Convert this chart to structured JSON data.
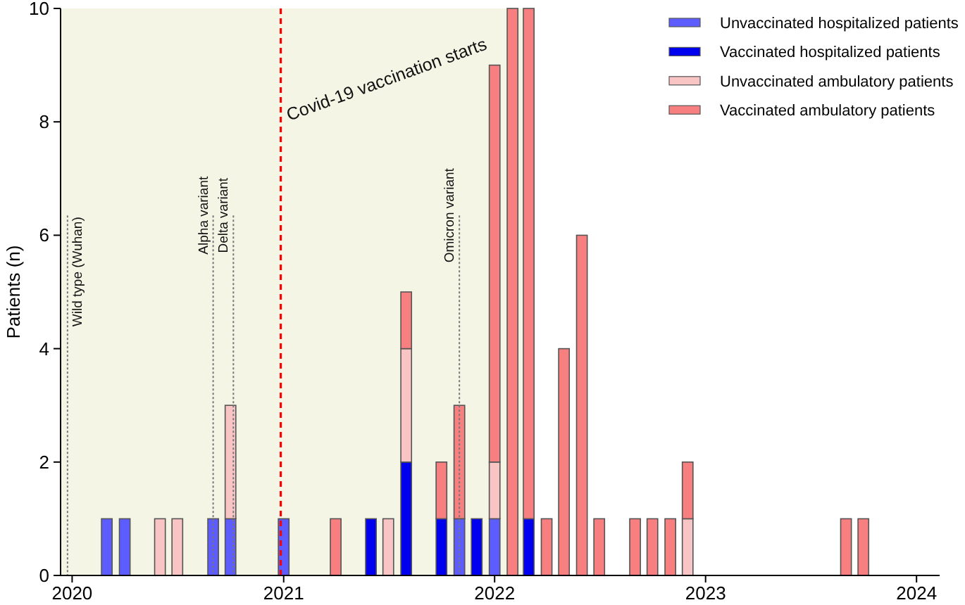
{
  "chart_data": {
    "type": "bar",
    "stacked": true,
    "ylabel": "Patients (n)",
    "x": [
      "2020-03",
      "2020-04",
      "2020-06",
      "2020-07",
      "2020-09",
      "2020-10",
      "2021-01",
      "2021-04",
      "2021-06",
      "2021-07",
      "2021-08",
      "2021-10",
      "2021-11",
      "2021-12",
      "2022-01",
      "2022-02",
      "2022-03",
      "2022-04",
      "2022-05",
      "2022-06",
      "2022-07",
      "2022-09",
      "2022-10",
      "2022-11",
      "2022-12",
      "2023-09",
      "2023-10"
    ],
    "series": [
      {
        "name": "Unvaccinated hospitalized patients",
        "color": "#5c5cff",
        "values": [
          1,
          1,
          null,
          null,
          1,
          1,
          1,
          null,
          null,
          null,
          null,
          null,
          1,
          null,
          1,
          null,
          null,
          null,
          null,
          null,
          null,
          null,
          null,
          null,
          null,
          null,
          null
        ]
      },
      {
        "name": "Vaccinated hospitalized patients",
        "color": "#0000ee",
        "values": [
          null,
          null,
          null,
          null,
          null,
          null,
          null,
          null,
          1,
          null,
          2,
          1,
          null,
          1,
          null,
          null,
          1,
          null,
          null,
          null,
          null,
          null,
          null,
          null,
          null,
          null,
          null
        ]
      },
      {
        "name": "Unvaccinated ambulatory patients",
        "color": "#f9c4c4",
        "values": [
          null,
          null,
          1,
          1,
          null,
          2,
          null,
          null,
          null,
          1,
          2,
          null,
          null,
          null,
          1,
          null,
          null,
          null,
          null,
          null,
          null,
          null,
          null,
          null,
          1,
          null,
          null
        ]
      },
      {
        "name": "Vaccinated ambulatory patients",
        "color": "#f77f7f",
        "values": [
          null,
          null,
          null,
          null,
          null,
          null,
          null,
          1,
          null,
          null,
          1,
          1,
          2,
          null,
          7,
          10,
          9,
          1,
          4,
          6,
          1,
          1,
          1,
          1,
          1,
          1,
          1
        ]
      }
    ],
    "xlim": [
      "2019-12-12",
      "2024-02-10"
    ],
    "xticks": [
      "2020",
      "2021",
      "2022",
      "2023",
      "2024"
    ],
    "ylim": [
      0,
      10
    ],
    "yticks": [
      0,
      2,
      4,
      6,
      8,
      10
    ],
    "bands": [
      {
        "axis": "x",
        "from": "2019-12-12",
        "to": "2022-03-10",
        "color": "#f5f5e6"
      }
    ],
    "ref_lines": [
      {
        "axis": "x",
        "value": "2020-12-27",
        "label": "Covid-19 vaccination starts",
        "color": "#ff0000",
        "line_style": "dashed"
      },
      {
        "axis": "x",
        "value": "2019-12-24",
        "label": "Wild type (Wuhan)",
        "color": "#777777",
        "line_style": "dotted"
      },
      {
        "axis": "x",
        "value": "2020-09-01",
        "label": "Alpha variant",
        "color": "#777777",
        "line_style": "dotted"
      },
      {
        "axis": "x",
        "value": "2020-10-06",
        "label": "Delta variant",
        "color": "#777777",
        "line_style": "dotted"
      },
      {
        "axis": "x",
        "value": "2021-11-01",
        "label": "Omicron variant",
        "color": "#777777",
        "line_style": "dotted"
      }
    ],
    "legend": "top right",
    "grid": false
  }
}
